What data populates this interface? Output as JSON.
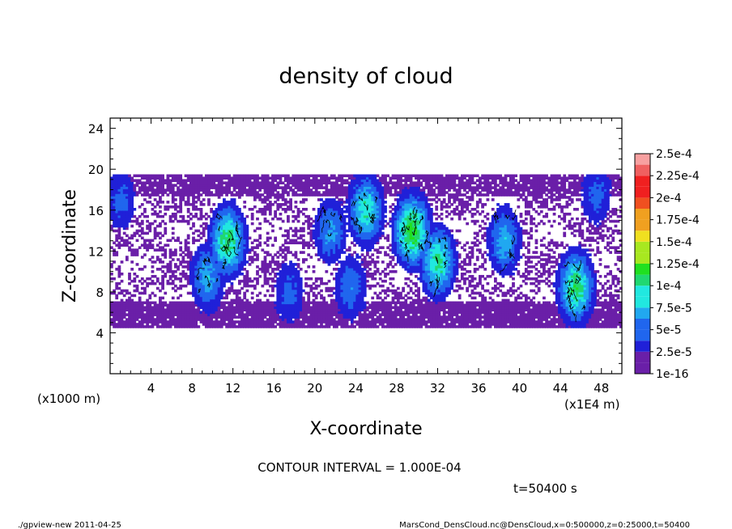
{
  "chart_data": {
    "type": "heatmap",
    "title": "density of cloud",
    "xlabel": "X-coordinate",
    "ylabel": "Z-coordinate",
    "x_unit_label": "(x1000 m)",
    "x_unit_label_right": "(x1E4 m)",
    "xlim": [
      0,
      50
    ],
    "ylim": [
      0,
      25
    ],
    "x_ticks": [
      4,
      8,
      12,
      16,
      20,
      24,
      28,
      32,
      36,
      40,
      44,
      48
    ],
    "y_ticks": [
      4,
      8,
      12,
      16,
      20,
      24
    ],
    "contour_interval_text": "CONTOUR INTERVAL = 1.000E-04",
    "time_label": "t=50400 s",
    "footer_left": "./gpview-new   2011-04-25",
    "footer_right": "MarsCond_DensCloud.nc@DensCloud,x=0:500000,z=0:25000,t=50400",
    "colorbar": {
      "labels": [
        "1e-16",
        "2.5e-5",
        "5e-5",
        "7.5e-5",
        "1e-4",
        "1.25e-4",
        "1.5e-4",
        "1.75e-4",
        "2e-4",
        "2.25e-4",
        "2.5e-4"
      ],
      "levels": [
        1e-16,
        2.5e-05,
        5e-05,
        7.5e-05,
        0.0001,
        0.000125,
        0.00015,
        0.000175,
        0.0002,
        0.000225,
        0.00025
      ],
      "colors": [
        "#6a1fa8",
        "#2020d8",
        "#2066ee",
        "#21a8f0",
        "#21e8e0",
        "#20d870",
        "#20e020",
        "#a8e820",
        "#f0e020",
        "#f0a020",
        "#f05020",
        "#f02020",
        "#f06060",
        "#f8a0a0"
      ]
    },
    "cloud_layer_z": [
      4.5,
      19.5
    ],
    "cloud_cores": [
      {
        "x": 1,
        "z": 17,
        "value": 6e-05
      },
      {
        "x": 9.5,
        "z": 9.5,
        "value": 9e-05
      },
      {
        "x": 11.5,
        "z": 13,
        "value": 0.00014
      },
      {
        "x": 17.5,
        "z": 8,
        "value": 6e-05
      },
      {
        "x": 21.5,
        "z": 14,
        "value": 8e-05
      },
      {
        "x": 23.5,
        "z": 8.5,
        "value": 7e-05
      },
      {
        "x": 25,
        "z": 16,
        "value": 0.00012
      },
      {
        "x": 29.5,
        "z": 14,
        "value": 0.00016
      },
      {
        "x": 32,
        "z": 11,
        "value": 0.00013
      },
      {
        "x": 38.5,
        "z": 13,
        "value": 9e-05
      },
      {
        "x": 45.5,
        "z": 8.5,
        "value": 0.00014
      },
      {
        "x": 47.5,
        "z": 17.5,
        "value": 6e-05
      }
    ]
  }
}
